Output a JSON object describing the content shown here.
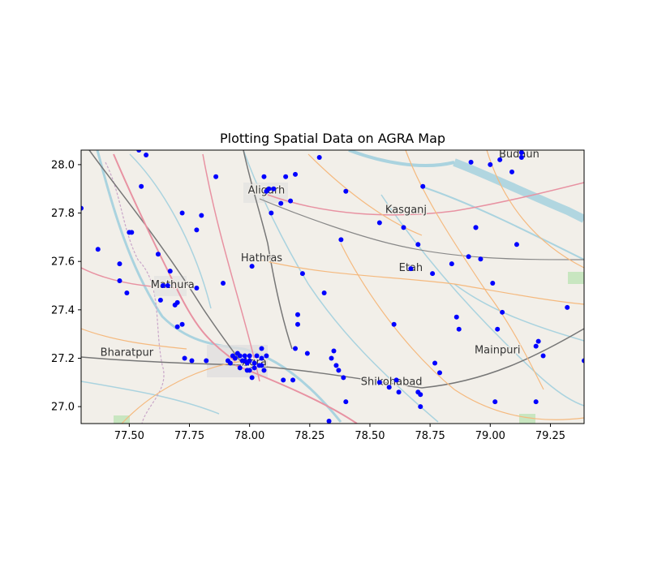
{
  "chart_data": {
    "type": "scatter",
    "title": "Plotting Spatial Data on AGRA Map",
    "xlabel": "",
    "ylabel": "",
    "xlim": [
      77.3,
      79.39
    ],
    "ylim": [
      26.93,
      28.06
    ],
    "xticks": [
      77.5,
      77.75,
      78.0,
      78.25,
      78.5,
      78.75,
      79.0,
      79.25
    ],
    "xtick_labels": [
      "77.50",
      "77.75",
      "78.00",
      "78.25",
      "78.50",
      "78.75",
      "79.00",
      "79.25"
    ],
    "yticks": [
      27.0,
      27.2,
      27.4,
      27.6,
      27.8,
      28.0
    ],
    "ytick_labels": [
      "27.0",
      "27.2",
      "27.4",
      "27.6",
      "27.8",
      "28.0"
    ],
    "grid": false,
    "marker_color": "#0000ff",
    "basemap": "street map",
    "places": [
      {
        "name": "Budaun",
        "lon": 79.12,
        "lat": 28.03
      },
      {
        "name": "Aligarh",
        "lon": 78.07,
        "lat": 27.88
      },
      {
        "name": "Kasganj",
        "lon": 78.65,
        "lat": 27.8
      },
      {
        "name": "Hathras",
        "lon": 78.05,
        "lat": 27.6
      },
      {
        "name": "Etah",
        "lon": 78.67,
        "lat": 27.56
      },
      {
        "name": "Mathura",
        "lon": 77.68,
        "lat": 27.49
      },
      {
        "name": "Bharatpur",
        "lon": 77.49,
        "lat": 27.21
      },
      {
        "name": "Mainpuri",
        "lon": 79.03,
        "lat": 27.22
      },
      {
        "name": "Agra",
        "lon": 78.02,
        "lat": 27.17
      },
      {
        "name": "Shikohabad",
        "lon": 78.59,
        "lat": 27.09
      }
    ],
    "points": [
      [
        77.3,
        27.82
      ],
      [
        77.37,
        27.65
      ],
      [
        77.46,
        27.59
      ],
      [
        77.46,
        27.52
      ],
      [
        77.49,
        27.47
      ],
      [
        77.5,
        27.72
      ],
      [
        77.51,
        27.72
      ],
      [
        77.54,
        28.06
      ],
      [
        77.55,
        27.91
      ],
      [
        77.57,
        28.04
      ],
      [
        77.62,
        27.63
      ],
      [
        77.63,
        27.44
      ],
      [
        77.64,
        27.5
      ],
      [
        77.66,
        27.5
      ],
      [
        77.67,
        27.56
      ],
      [
        77.69,
        27.42
      ],
      [
        77.7,
        27.43
      ],
      [
        77.7,
        27.33
      ],
      [
        77.72,
        27.34
      ],
      [
        77.72,
        27.8
      ],
      [
        77.73,
        27.2
      ],
      [
        77.76,
        27.19
      ],
      [
        77.78,
        27.73
      ],
      [
        77.78,
        27.49
      ],
      [
        77.8,
        27.79
      ],
      [
        77.82,
        27.19
      ],
      [
        77.86,
        27.95
      ],
      [
        77.89,
        27.51
      ],
      [
        77.91,
        27.19
      ],
      [
        77.92,
        27.18
      ],
      [
        77.93,
        27.21
      ],
      [
        77.94,
        27.2
      ],
      [
        77.95,
        27.22
      ],
      [
        77.96,
        27.21
      ],
      [
        77.96,
        27.16
      ],
      [
        77.97,
        27.19
      ],
      [
        77.98,
        27.21
      ],
      [
        77.98,
        27.19
      ],
      [
        77.99,
        27.18
      ],
      [
        77.99,
        27.15
      ],
      [
        78.0,
        27.21
      ],
      [
        78.0,
        27.19
      ],
      [
        78.0,
        27.15
      ],
      [
        78.01,
        27.12
      ],
      [
        78.01,
        27.58
      ],
      [
        78.02,
        27.18
      ],
      [
        78.02,
        27.16
      ],
      [
        78.03,
        27.21
      ],
      [
        78.04,
        27.17
      ],
      [
        78.05,
        27.24
      ],
      [
        78.05,
        27.2
      ],
      [
        78.05,
        27.17
      ],
      [
        78.06,
        27.15
      ],
      [
        78.07,
        27.21
      ],
      [
        78.06,
        27.95
      ],
      [
        78.07,
        27.89
      ],
      [
        78.08,
        27.9
      ],
      [
        78.09,
        27.8
      ],
      [
        78.1,
        27.9
      ],
      [
        78.13,
        27.84
      ],
      [
        78.14,
        27.11
      ],
      [
        78.15,
        27.95
      ],
      [
        78.17,
        27.85
      ],
      [
        78.18,
        27.11
      ],
      [
        78.19,
        27.24
      ],
      [
        78.19,
        27.96
      ],
      [
        78.2,
        27.38
      ],
      [
        78.2,
        27.34
      ],
      [
        78.22,
        27.55
      ],
      [
        78.24,
        27.22
      ],
      [
        78.29,
        28.03
      ],
      [
        78.31,
        27.47
      ],
      [
        78.33,
        26.94
      ],
      [
        78.34,
        27.2
      ],
      [
        78.35,
        27.23
      ],
      [
        78.36,
        27.17
      ],
      [
        78.37,
        27.15
      ],
      [
        78.38,
        27.69
      ],
      [
        78.39,
        27.12
      ],
      [
        78.4,
        27.89
      ],
      [
        78.4,
        27.02
      ],
      [
        78.54,
        27.76
      ],
      [
        78.54,
        27.1
      ],
      [
        78.58,
        27.08
      ],
      [
        78.6,
        27.34
      ],
      [
        78.61,
        27.11
      ],
      [
        78.62,
        27.06
      ],
      [
        78.64,
        27.74
      ],
      [
        78.67,
        27.57
      ],
      [
        78.7,
        27.67
      ],
      [
        78.7,
        27.06
      ],
      [
        78.71,
        27.05
      ],
      [
        78.71,
        27.0
      ],
      [
        78.72,
        27.91
      ],
      [
        78.76,
        27.55
      ],
      [
        78.77,
        27.18
      ],
      [
        78.79,
        27.14
      ],
      [
        78.84,
        27.59
      ],
      [
        78.86,
        27.37
      ],
      [
        78.87,
        27.32
      ],
      [
        78.91,
        27.62
      ],
      [
        78.92,
        28.01
      ],
      [
        78.94,
        27.74
      ],
      [
        78.94,
        27.74
      ],
      [
        78.96,
        27.61
      ],
      [
        79.0,
        28.0
      ],
      [
        79.01,
        27.51
      ],
      [
        79.02,
        27.02
      ],
      [
        79.03,
        27.32
      ],
      [
        79.04,
        28.02
      ],
      [
        79.05,
        27.39
      ],
      [
        79.09,
        27.97
      ],
      [
        79.11,
        27.67
      ],
      [
        79.13,
        28.03
      ],
      [
        79.13,
        28.05
      ],
      [
        79.19,
        27.02
      ],
      [
        79.19,
        27.25
      ],
      [
        79.2,
        27.27
      ],
      [
        79.22,
        27.21
      ],
      [
        79.32,
        27.41
      ],
      [
        79.39,
        27.19
      ]
    ]
  }
}
